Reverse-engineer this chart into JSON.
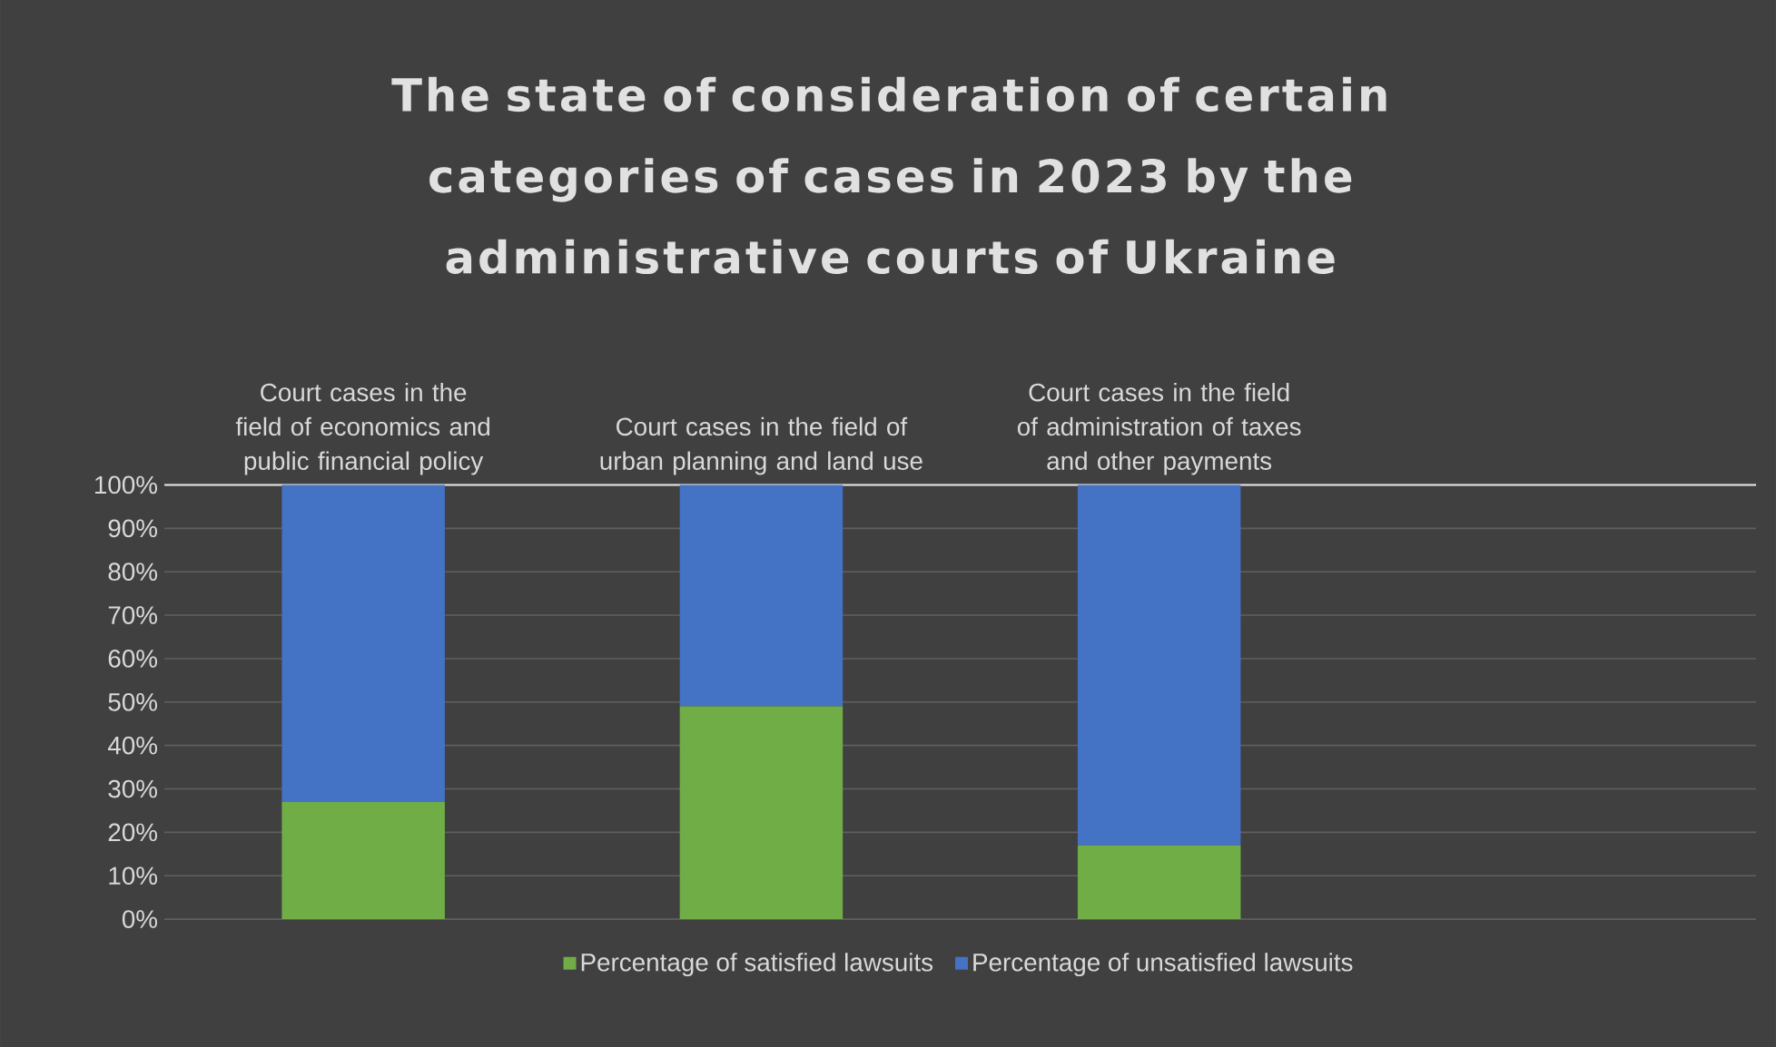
{
  "chart_data": {
    "type": "bar",
    "stacked": true,
    "title": "The state of consideration of certain categories of cases in 2023 by the administrative courts of Ukraine",
    "categories": [
      "Court cases in the field of economics and public financial policy",
      "Court cases in the field of urban planning and land use",
      "Court cases in the field of administration of taxes and other payments",
      null
    ],
    "series": [
      {
        "name": "Percentage of satisfied lawsuits",
        "color": "#70ad47",
        "values": [
          27,
          49,
          17,
          null
        ]
      },
      {
        "name": "Percentage of unsatisfied lawsuits",
        "color": "#4472c4",
        "values": [
          73,
          51,
          83,
          null
        ]
      }
    ],
    "ylim": [
      0,
      100
    ],
    "yticks": [
      {
        "value": 0,
        "label": "0%"
      },
      {
        "value": 10,
        "label": "10%"
      },
      {
        "value": 20,
        "label": "20%"
      },
      {
        "value": 30,
        "label": "30%"
      },
      {
        "value": 40,
        "label": "40%"
      },
      {
        "value": 50,
        "label": "50%"
      },
      {
        "value": 60,
        "label": "60%"
      },
      {
        "value": 70,
        "label": "70%"
      },
      {
        "value": 80,
        "label": "80%"
      },
      {
        "value": 90,
        "label": "90%"
      },
      {
        "value": 100,
        "label": "100%"
      }
    ],
    "grid": "y",
    "legend": "bottom"
  }
}
